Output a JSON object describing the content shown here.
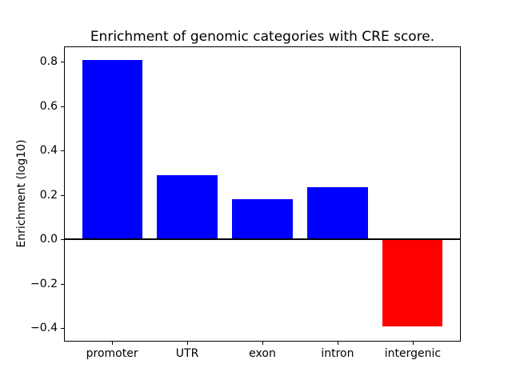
{
  "chart_data": {
    "type": "bar",
    "title": "Enrichment of genomic categories with CRE score.",
    "xlabel": "",
    "ylabel": "Enrichment (log10)",
    "categories": [
      "promoter",
      "UTR",
      "exon",
      "intron",
      "intergenic"
    ],
    "values": [
      0.81,
      0.29,
      0.18,
      0.235,
      -0.39
    ],
    "bar_colors": [
      "#0000ff",
      "#0000ff",
      "#0000ff",
      "#0000ff",
      "#ff0000"
    ],
    "positive_color": "#0000ff",
    "negative_color": "#ff0000",
    "yticks": [
      0.8,
      0.6,
      0.4,
      0.2,
      0.0,
      -0.2,
      -0.4
    ],
    "ylim": [
      -0.46,
      0.87
    ],
    "xlim": [
      -0.64,
      4.64
    ],
    "bar_width_fraction": 0.8,
    "grid": false,
    "zero_line": true,
    "legend": "none",
    "axis_color": "#000000",
    "text_color": "#000000",
    "background_color": "#ffffff"
  }
}
